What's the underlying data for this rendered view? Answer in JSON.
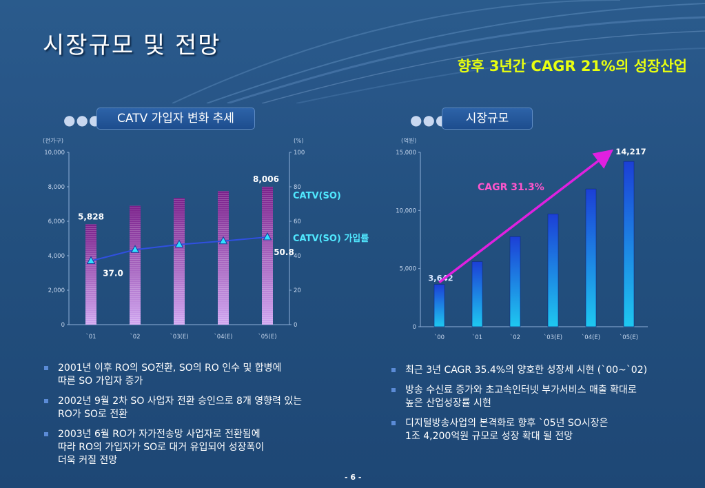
{
  "title": "시장규모 및 전망",
  "headline": "향후 3년간 CAGR 21%의 성장산업",
  "colors": {
    "headline": "#e8ff10",
    "cagr_label": "#ff55cc",
    "arrow": "#e020e0",
    "line": "#3050e0",
    "marker": "#30e0ff",
    "series_label": "#50e8ff"
  },
  "left_section": {
    "header": "CATV 가입자 변화 추세",
    "bullets": [
      {
        "lines": [
          "2001년 이후 RO의 SO전환, SO의 RO 인수 및 합병에",
          "따른 SO 가입자 증가"
        ]
      },
      {
        "lines": [
          "2002년 9월 2차 SO 사업자 전환 승인으로 8개 영향력 있는",
          "RO가 SO로 전환"
        ]
      },
      {
        "lines": [
          "2003년 6월 RO가 자가전송망 사업자로 전환됨에",
          "따라 RO의 가입자가 SO로 대거 유입되어 성장폭이",
          "더욱 커질 전망"
        ]
      }
    ]
  },
  "right_section": {
    "header": "시장규모",
    "bullets": [
      {
        "lines": [
          "최근 3년 CAGR 35.4%의 양호한 성장세 시현 (`00~`02)"
        ]
      },
      {
        "lines": [
          "방송 수신료 증가와 초고속인터넷 부가서비스 매출 확대로",
          "높은 산업성장률 시현"
        ]
      },
      {
        "lines": [
          "디지털방송사업의 본격화로 향후 `05년 SO시장은",
          "1조 4,200억원 규모로 성장 확대 될 전망"
        ]
      }
    ]
  },
  "page_number": "- 6 -",
  "chart_data": [
    {
      "type": "bar",
      "categories": [
        "`01",
        "`02",
        "`03(E)",
        "`04(E)",
        "`05(E)"
      ],
      "ylabel": "(천가구)",
      "y2label": "(%)",
      "ylim": [
        0,
        10000
      ],
      "y2lim": [
        0,
        100
      ],
      "yticks": [
        "0",
        "2,000",
        "4,000",
        "6,000",
        "8,000",
        "10,000"
      ],
      "y2ticks": [
        "0",
        "20",
        "40",
        "60",
        "80",
        "100"
      ],
      "series": [
        {
          "name": "CATV(SO)",
          "type": "bar",
          "values": [
            5828,
            6900,
            7350,
            7750,
            8006
          ]
        },
        {
          "name": "CATV(SO) 가입률",
          "type": "line",
          "axis": "right",
          "values": [
            37.0,
            43.5,
            46.5,
            48.5,
            50.8
          ]
        }
      ],
      "data_labels": [
        {
          "series": 0,
          "index": 0,
          "text": "5,828"
        },
        {
          "series": 0,
          "index": 4,
          "text": "8,006"
        },
        {
          "series": 1,
          "index": 0,
          "text": "37.0"
        },
        {
          "series": 1,
          "index": 4,
          "text": "50.8"
        }
      ],
      "grid": false,
      "legend": "inline-right"
    },
    {
      "type": "bar",
      "categories": [
        "`00",
        "`01",
        "`02",
        "`03(E)",
        "`04(E)",
        "`05(E)"
      ],
      "ylabel": "(억원)",
      "ylim": [
        0,
        15000
      ],
      "yticks": [
        "0",
        "5,000",
        "10,000",
        "15,000"
      ],
      "series": [
        {
          "values": [
            3642,
            5600,
            7750,
            9700,
            11850,
            14217
          ]
        }
      ],
      "data_labels": [
        {
          "index": 0,
          "text": "3,642"
        },
        {
          "index": 5,
          "text": "14,217"
        }
      ],
      "annotation": {
        "text": "CAGR 31.3%",
        "arrow_from": [
          0,
          5000
        ],
        "arrow_to": [
          5,
          15000
        ]
      },
      "grid": false,
      "legend": "none"
    }
  ]
}
